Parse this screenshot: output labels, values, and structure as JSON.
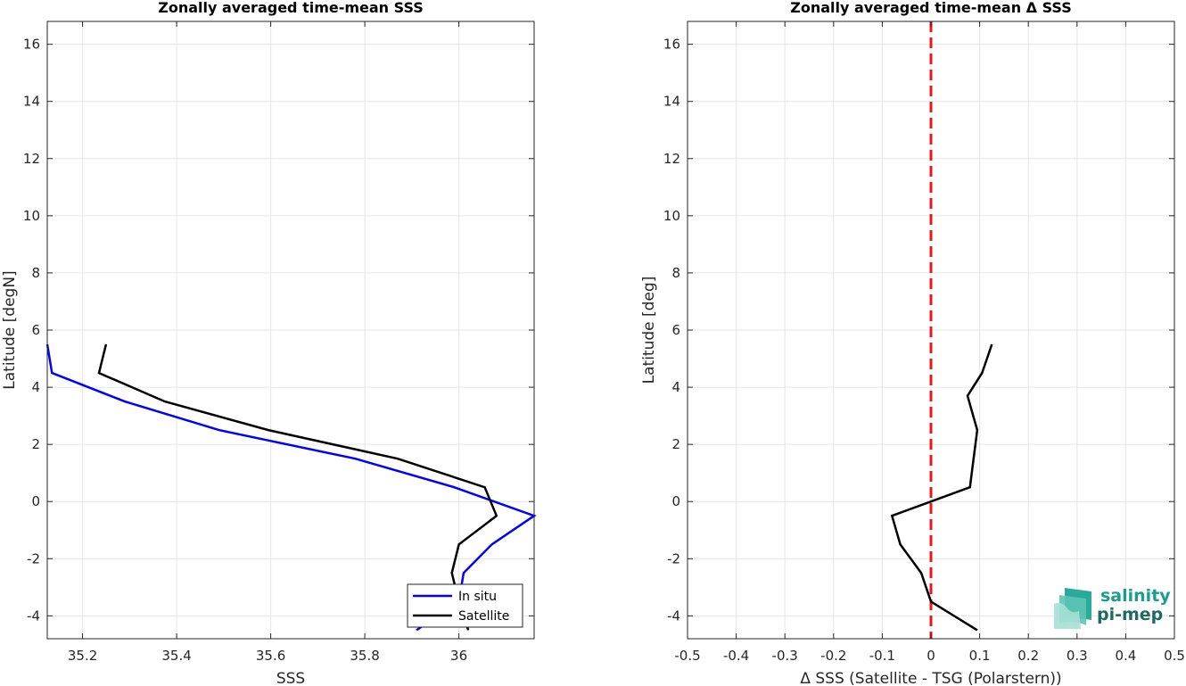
{
  "chart_data": [
    {
      "type": "line",
      "title": "Zonally averaged time-mean SSS",
      "xlabel": "SSS",
      "ylabel": "Latitude [degN]",
      "xlim": [
        35.125,
        36.16
      ],
      "ylim": [
        -4.8,
        16.8
      ],
      "x_ticks": [
        "35.2",
        "35.4",
        "35.6",
        "35.8",
        "36"
      ],
      "y_ticks": [
        "-4",
        "-2",
        "0",
        "2",
        "4",
        "6",
        "8",
        "10",
        "12",
        "14",
        "16"
      ],
      "grid": true,
      "legend_position": "bottom-right",
      "series": [
        {
          "name": "In situ",
          "color": "#0000ff",
          "points": [
            [
              35.125,
              5.5
            ],
            [
              35.135,
              4.5
            ],
            [
              35.29,
              3.5
            ],
            [
              35.49,
              2.5
            ],
            [
              35.78,
              1.5
            ],
            [
              35.99,
              0.5
            ],
            [
              36.16,
              -0.5
            ],
            [
              36.07,
              -1.5
            ],
            [
              36.01,
              -2.5
            ],
            [
              36.0,
              -3.5
            ],
            [
              35.91,
              -4.5
            ]
          ]
        },
        {
          "name": "Satellite",
          "color": "#000000",
          "points": [
            [
              35.25,
              5.5
            ],
            [
              35.235,
              4.5
            ],
            [
              35.375,
              3.5
            ],
            [
              35.595,
              2.5
            ],
            [
              35.87,
              1.5
            ],
            [
              36.055,
              0.5
            ],
            [
              36.08,
              -0.5
            ],
            [
              36.0,
              -1.5
            ],
            [
              35.985,
              -2.5
            ],
            [
              36.0,
              -3.5
            ],
            [
              36.02,
              -4.5
            ]
          ]
        }
      ]
    },
    {
      "type": "line",
      "title": "Zonally averaged time-mean Δ SSS",
      "xlabel": "Δ SSS (Satellite - TSG (Polarstern))",
      "ylabel": "Latitude [deg]",
      "xlim": [
        -0.5,
        0.5
      ],
      "ylim": [
        -4.8,
        16.8
      ],
      "x_ticks": [
        "-0.5",
        "-0.4",
        "-0.3",
        "-0.2",
        "-0.1",
        "0",
        "0.1",
        "0.2",
        "0.3",
        "0.4",
        "0.5"
      ],
      "y_ticks": [
        "-4",
        "-2",
        "0",
        "2",
        "4",
        "6",
        "8",
        "10",
        "12",
        "14",
        "16"
      ],
      "grid": true,
      "reference_line": {
        "x": 0,
        "color": "#e41a1c",
        "style": "dashed"
      },
      "series": [
        {
          "color": "#000000",
          "points": [
            [
              0.125,
              5.5
            ],
            [
              0.105,
              4.5
            ],
            [
              0.075,
              3.7
            ],
            [
              0.095,
              2.5
            ],
            [
              0.08,
              0.5
            ],
            [
              0.0,
              0.0
            ],
            [
              -0.08,
              -0.5
            ],
            [
              -0.063,
              -1.5
            ],
            [
              -0.02,
              -2.5
            ],
            [
              0.0,
              -3.5
            ],
            [
              0.095,
              -4.5
            ]
          ]
        }
      ]
    }
  ],
  "logo": {
    "line1": "salinity",
    "line2": "pi-mep"
  }
}
